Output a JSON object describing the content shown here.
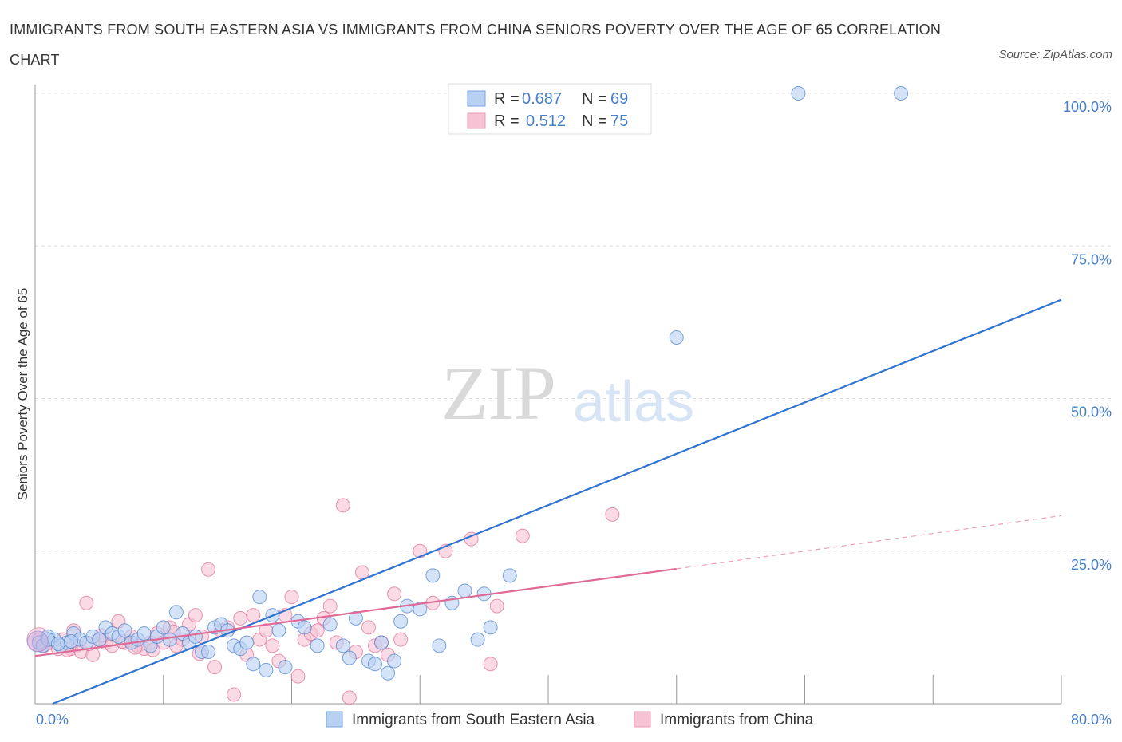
{
  "title": "IMMIGRANTS FROM SOUTH EASTERN ASIA VS IMMIGRANTS FROM CHINA SENIORS POVERTY OVER THE AGE OF 65 CORRELATION CHART",
  "source": "Source: ZipAtlas.com",
  "watermark": {
    "zip": "ZIP",
    "atlas": "atlas"
  },
  "legend": {
    "r_label": "R =",
    "n_label": "N =",
    "series1": {
      "r": "0.687",
      "n": "69"
    },
    "series2": {
      "r": "0.512",
      "n": "75"
    }
  },
  "chart_data": {
    "type": "scatter",
    "title": "IMMIGRANTS FROM SOUTH EASTERN ASIA VS IMMIGRANTS FROM CHINA SENIORS POVERTY OVER THE AGE OF 65 CORRELATION CHART",
    "xlabel": "",
    "ylabel": "Seniors Poverty Over the Age of 65",
    "xlim": [
      0,
      80
    ],
    "ylim": [
      0,
      100
    ],
    "x_tick_labels": [
      "0.0%",
      "80.0%"
    ],
    "y_ticks": [
      25,
      50,
      75,
      100
    ],
    "y_tick_labels": [
      "25.0%",
      "50.0%",
      "75.0%",
      "100.0%"
    ],
    "grid": true,
    "series": [
      {
        "name": "Immigrants from South Eastern Asia",
        "color": "#4a7fc9",
        "fill": "#b8d1f3",
        "trend": {
          "x": [
            0,
            80
          ],
          "y": [
            -1.6,
            66.2
          ]
        },
        "points": [
          [
            0.3,
            10
          ],
          [
            0.6,
            9.5
          ],
          [
            1,
            11
          ],
          [
            1.5,
            10.5
          ],
          [
            2,
            9.5
          ],
          [
            2.5,
            10
          ],
          [
            3,
            11.5
          ],
          [
            3.5,
            10.5
          ],
          [
            4,
            10
          ],
          [
            4.5,
            11
          ],
          [
            5,
            10.5
          ],
          [
            5.5,
            12.5
          ],
          [
            6,
            11.5
          ],
          [
            6.5,
            11
          ],
          [
            7,
            12
          ],
          [
            7.5,
            10
          ],
          [
            8,
            10.5
          ],
          [
            8.5,
            11.5
          ],
          [
            9,
            9.5
          ],
          [
            9.5,
            11
          ],
          [
            10,
            12.5
          ],
          [
            10.5,
            10.5
          ],
          [
            11,
            15
          ],
          [
            11.5,
            11.5
          ],
          [
            12,
            10
          ],
          [
            12.5,
            11
          ],
          [
            13,
            8.5
          ],
          [
            13.5,
            8.5
          ],
          [
            14,
            12.5
          ],
          [
            14.5,
            13
          ],
          [
            15,
            12
          ],
          [
            15.5,
            9.5
          ],
          [
            16,
            9
          ],
          [
            16.5,
            10
          ],
          [
            17,
            6.5
          ],
          [
            17.5,
            17.5
          ],
          [
            18,
            5.5
          ],
          [
            18.5,
            14.5
          ],
          [
            19,
            12
          ],
          [
            19.5,
            6
          ],
          [
            20.5,
            13.5
          ],
          [
            21,
            12.5
          ],
          [
            22,
            9.5
          ],
          [
            23,
            13
          ],
          [
            24,
            9.5
          ],
          [
            24.5,
            7.5
          ],
          [
            25,
            14
          ],
          [
            26,
            7
          ],
          [
            26.5,
            6.5
          ],
          [
            27,
            10
          ],
          [
            27.5,
            5
          ],
          [
            28,
            7
          ],
          [
            28.5,
            13.5
          ],
          [
            29,
            16
          ],
          [
            30,
            15.5
          ],
          [
            31,
            21
          ],
          [
            31.5,
            9.5
          ],
          [
            32.5,
            16.5
          ],
          [
            33.5,
            18.5
          ],
          [
            34.5,
            10.5
          ],
          [
            35,
            18
          ],
          [
            35.5,
            12.5
          ],
          [
            37,
            21
          ],
          [
            50,
            60
          ],
          [
            59.5,
            100
          ],
          [
            67.5,
            100
          ],
          [
            1,
            10.5
          ],
          [
            1.8,
            9.8
          ],
          [
            2.8,
            10.2
          ]
        ]
      },
      {
        "name": "Immigrants from China",
        "color": "#e06a96",
        "fill": "#f6c3d4",
        "trend": {
          "x": [
            0,
            50
          ],
          "y": [
            7.8,
            22.1
          ]
        },
        "trend_dashed": {
          "x": [
            50,
            80
          ],
          "y": [
            22.1,
            30.8
          ]
        },
        "points": [
          [
            0.3,
            10.5
          ],
          [
            0.7,
            9.5
          ],
          [
            1.2,
            10
          ],
          [
            1.8,
            9
          ],
          [
            2.2,
            10.5
          ],
          [
            2.8,
            9
          ],
          [
            3.2,
            9.5
          ],
          [
            3.6,
            8.5
          ],
          [
            4,
            16.5
          ],
          [
            4.5,
            8
          ],
          [
            5,
            10.5
          ],
          [
            5.5,
            10
          ],
          [
            6,
            9.5
          ],
          [
            6.5,
            13.5
          ],
          [
            7,
            10
          ],
          [
            7.5,
            11
          ],
          [
            8,
            9.5
          ],
          [
            8.5,
            9
          ],
          [
            9,
            10
          ],
          [
            9.5,
            11.5
          ],
          [
            10,
            10
          ],
          [
            10.5,
            12.5
          ],
          [
            11,
            9.5
          ],
          [
            11.5,
            10.5
          ],
          [
            12,
            13
          ],
          [
            12.5,
            14.5
          ],
          [
            13,
            11
          ],
          [
            13.5,
            22
          ],
          [
            14,
            6
          ],
          [
            14.5,
            12
          ],
          [
            15,
            12.5
          ],
          [
            15.5,
            1.5
          ],
          [
            16,
            14
          ],
          [
            16.5,
            8
          ],
          [
            17,
            14.5
          ],
          [
            17.5,
            10.5
          ],
          [
            18,
            12
          ],
          [
            18.5,
            9.5
          ],
          [
            19,
            7
          ],
          [
            19.5,
            14.5
          ],
          [
            20,
            17.5
          ],
          [
            20.5,
            4.5
          ],
          [
            21,
            10.5
          ],
          [
            21.5,
            11.5
          ],
          [
            22,
            12
          ],
          [
            22.5,
            14
          ],
          [
            23,
            16
          ],
          [
            23.5,
            10
          ],
          [
            24,
            32.5
          ],
          [
            24.5,
            1
          ],
          [
            25,
            8.5
          ],
          [
            25.5,
            21.5
          ],
          [
            26,
            12.5
          ],
          [
            26.5,
            9.5
          ],
          [
            27,
            10
          ],
          [
            27.5,
            8
          ],
          [
            28,
            18
          ],
          [
            28.5,
            10.5
          ],
          [
            30,
            25
          ],
          [
            31,
            16.5
          ],
          [
            32,
            25
          ],
          [
            34,
            27
          ],
          [
            35.5,
            6.5
          ],
          [
            36,
            16
          ],
          [
            38,
            27.5
          ],
          [
            45,
            31
          ],
          [
            3,
            12
          ],
          [
            5.2,
            11.2
          ],
          [
            7.8,
            9.2
          ],
          [
            9.2,
            8.8
          ],
          [
            10.8,
            11.8
          ],
          [
            2.5,
            8.8
          ],
          [
            4.2,
            9.8
          ],
          [
            6.8,
            10.2
          ],
          [
            12.8,
            8.2
          ]
        ]
      }
    ],
    "bottom_legend": [
      "Immigrants from South Eastern Asia",
      "Immigrants from China"
    ]
  }
}
